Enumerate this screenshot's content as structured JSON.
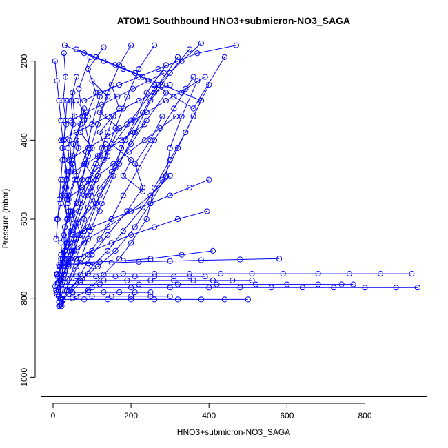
{
  "chart_data": {
    "type": "line",
    "title": "ATOM1 Southbound HNO3+submicron-NO3_SAGA",
    "xlabel": "HNO3+submicron-NO3_SAGA",
    "ylabel": "Pressure (mbar)",
    "xlim": [
      -30,
      960
    ],
    "ylim": [
      1050,
      150
    ],
    "y_reversed": true,
    "x_ticks": [
      0,
      200,
      400,
      600,
      800
    ],
    "y_ticks": [
      200,
      400,
      600,
      800,
      1000
    ],
    "marker": "open-circle",
    "color": "#0000ff",
    "grid": false,
    "series": [
      {
        "x": [
          22,
          35,
          58,
          90,
          120,
          170,
          210,
          250,
          300,
          350
        ],
        "y": [
          820,
          780,
          700,
          620,
          540,
          460,
          380,
          300,
          230,
          170
        ]
      },
      {
        "x": [
          10,
          28,
          45,
          60,
          95,
          140,
          200,
          260,
          330,
          380
        ],
        "y": [
          790,
          740,
          690,
          610,
          520,
          430,
          350,
          270,
          200,
          155
        ]
      },
      {
        "x": [
          15,
          20,
          40,
          70,
          110,
          150,
          185,
          230,
          270,
          320
        ],
        "y": [
          810,
          760,
          710,
          640,
          560,
          480,
          400,
          330,
          260,
          190
        ]
      },
      {
        "x": [
          8,
          30,
          55,
          80,
          100,
          130,
          160,
          190,
          220,
          260
        ],
        "y": [
          780,
          730,
          680,
          600,
          530,
          450,
          370,
          290,
          220,
          160
        ]
      },
      {
        "x": [
          12,
          25,
          35,
          50,
          70,
          90,
          115,
          140,
          170,
          200
        ],
        "y": [
          760,
          710,
          660,
          590,
          510,
          440,
          360,
          280,
          210,
          160
        ]
      },
      {
        "x": [
          20,
          40,
          60,
          50,
          75,
          95,
          80,
          110,
          90,
          130
        ],
        "y": [
          800,
          720,
          650,
          580,
          500,
          420,
          350,
          280,
          220,
          165
        ]
      },
      {
        "x": [
          5,
          18,
          30,
          45,
          38,
          60,
          52,
          75,
          66,
          95
        ],
        "y": [
          770,
          720,
          680,
          630,
          560,
          490,
          410,
          340,
          270,
          190
        ]
      },
      {
        "x": [
          25,
          48,
          72,
          95,
          125,
          155,
          175,
          210,
          240,
          290
        ],
        "y": [
          790,
          750,
          700,
          630,
          560,
          490,
          420,
          350,
          280,
          210
        ]
      },
      {
        "x": [
          18,
          22,
          30,
          28,
          40,
          34,
          48,
          42,
          55,
          50
        ],
        "y": [
          800,
          750,
          700,
          640,
          580,
          520,
          460,
          400,
          340,
          280
        ]
      },
      {
        "x": [
          30,
          60,
          90,
          120,
          150,
          180,
          220,
          260,
          310,
          360
        ],
        "y": [
          760,
          720,
          690,
          650,
          600,
          540,
          470,
          400,
          320,
          240
        ]
      },
      {
        "x": [
          14,
          26,
          20,
          36,
          30,
          44,
          38,
          52,
          46,
          60
        ],
        "y": [
          780,
          720,
          660,
          600,
          540,
          480,
          420,
          360,
          300,
          240
        ]
      },
      {
        "x": [
          40,
          70,
          100,
          140,
          180,
          230,
          280,
          320,
          360,
          400
        ],
        "y": [
          790,
          760,
          720,
          680,
          630,
          570,
          500,
          420,
          340,
          260
        ]
      },
      {
        "x": [
          10,
          40,
          80,
          60,
          110,
          90,
          140,
          120,
          170,
          150
        ],
        "y": [
          740,
          700,
          660,
          610,
          560,
          500,
          440,
          380,
          320,
          260
        ]
      },
      {
        "x": [
          50,
          90,
          130,
          170,
          200,
          240,
          260,
          300,
          340,
          380
        ],
        "y": [
          800,
          780,
          740,
          700,
          660,
          600,
          520,
          450,
          380,
          300
        ]
      },
      {
        "x": [
          20,
          35,
          50,
          65,
          80,
          95,
          110,
          125,
          140,
          155
        ],
        "y": [
          700,
          660,
          620,
          580,
          540,
          500,
          460,
          420,
          380,
          340
        ]
      },
      {
        "x": [
          16,
          32,
          48,
          64,
          90,
          120,
          160,
          200,
          240,
          290
        ],
        "y": [
          720,
          690,
          650,
          610,
          570,
          520,
          470,
          410,
          350,
          280
        ]
      },
      {
        "x": [
          12,
          30,
          45,
          38,
          55,
          70,
          62,
          85,
          100,
          120
        ],
        "y": [
          760,
          730,
          700,
          660,
          610,
          560,
          500,
          430,
          360,
          290
        ]
      },
      {
        "x": [
          35,
          75,
          115,
          160,
          210,
          250,
          290,
          300,
          330,
          370
        ],
        "y": [
          780,
          750,
          720,
          680,
          620,
          560,
          490,
          420,
          340,
          250
        ]
      },
      {
        "x": [
          15,
          25,
          35,
          30,
          45,
          40,
          55,
          50,
          65,
          60
        ],
        "y": [
          740,
          700,
          660,
          620,
          580,
          540,
          500,
          460,
          420,
          380
        ]
      },
      {
        "x": [
          22,
          45,
          70,
          100,
          140,
          190,
          230,
          210,
          250,
          280
        ],
        "y": [
          810,
          780,
          740,
          690,
          640,
          580,
          520,
          460,
          400,
          340
        ]
      },
      {
        "x": [
          300,
          250,
          200,
          140,
          90,
          50,
          20
        ],
        "y": [
          490,
          540,
          580,
          620,
          650,
          680,
          710
        ]
      },
      {
        "x": [
          395,
          320,
          260,
          200,
          150,
          100,
          60,
          30
        ],
        "y": [
          580,
          600,
          620,
          640,
          660,
          680,
          700,
          710
        ]
      },
      {
        "x": [
          410,
          330,
          250,
          180,
          120,
          70,
          30
        ],
        "y": [
          680,
          690,
          700,
          705,
          708,
          710,
          712
        ]
      },
      {
        "x": [
          580,
          480,
          380,
          300,
          220,
          150,
          90,
          40,
          15
        ],
        "y": [
          700,
          702,
          704,
          706,
          708,
          710,
          712,
          714,
          716
        ]
      },
      {
        "x": [
          10,
          90,
          180,
          260,
          350,
          430,
          510,
          590,
          680,
          760,
          840,
          920
        ],
        "y": [
          738,
          738,
          738,
          738,
          738,
          738,
          738,
          738,
          738,
          738,
          738,
          738
        ]
      },
      {
        "x": [
          15,
          100,
          200,
          300,
          400,
          480,
          560,
          640,
          720,
          800,
          880,
          935
        ],
        "y": [
          773,
          773,
          773,
          773,
          773,
          773,
          773,
          773,
          773,
          773,
          773,
          773
        ]
      },
      {
        "x": [
          20,
          120,
          220,
          320,
          420,
          520,
          600,
          680,
          740,
          770
        ],
        "y": [
          765,
          765,
          765,
          765,
          765,
          765,
          765,
          765,
          765,
          765
        ]
      },
      {
        "x": [
          25,
          80,
          140,
          200,
          260,
          320,
          380,
          440,
          500
        ],
        "y": [
          803,
          803,
          803,
          803,
          803,
          803,
          803,
          803,
          803
        ]
      },
      {
        "x": [
          12,
          60,
          110,
          160,
          210,
          260,
          310,
          350,
          390
        ],
        "y": [
          745,
          745,
          745,
          745,
          745,
          745,
          745,
          745,
          745
        ]
      },
      {
        "x": [
          18,
          70,
          130,
          190,
          250,
          310,
          360,
          410,
          460,
          510
        ],
        "y": [
          755,
          755,
          755,
          755,
          755,
          755,
          755,
          755,
          755,
          755
        ]
      },
      {
        "x": [
          10,
          50,
          90,
          130,
          170,
          210,
          250
        ],
        "y": [
          785,
          785,
          785,
          785,
          785,
          785,
          785
        ]
      },
      {
        "x": [
          14,
          60,
          100,
          150,
          200,
          250,
          300
        ],
        "y": [
          795,
          795,
          795,
          795,
          795,
          795,
          795
        ]
      },
      {
        "x": [
          15,
          18,
          20,
          22,
          25
        ],
        "y": [
          820,
          818,
          815,
          810,
          805
        ]
      },
      {
        "x": [
          30,
          80,
          130,
          180,
          230,
          280,
          330,
          380
        ],
        "y": [
          160,
          180,
          200,
          220,
          240,
          260,
          280,
          300
        ]
      },
      {
        "x": [
          60,
          110,
          160,
          210,
          260,
          310,
          360,
          440
        ],
        "y": [
          170,
          190,
          210,
          230,
          260,
          290,
          320,
          190
        ]
      },
      {
        "x": [
          80,
          120,
          170,
          220,
          270,
          320,
          370,
          470
        ],
        "y": [
          300,
          280,
          260,
          240,
          220,
          200,
          180,
          160
        ]
      },
      {
        "x": [
          20,
          60,
          100,
          140,
          180,
          220,
          260,
          300
        ],
        "y": [
          400,
          380,
          360,
          340,
          320,
          300,
          280,
          260
        ]
      },
      {
        "x": [
          40,
          90,
          140,
          190,
          240,
          290,
          340,
          390
        ],
        "y": [
          450,
          420,
          390,
          360,
          330,
          300,
          270,
          240
        ]
      },
      {
        "x": [
          25,
          55,
          85,
          115,
          145,
          175,
          205,
          235
        ],
        "y": [
          500,
          480,
          460,
          440,
          420,
          400,
          380,
          360
        ]
      },
      {
        "x": [
          35,
          75,
          115,
          155,
          195,
          235,
          275,
          315
        ],
        "y": [
          550,
          520,
          490,
          460,
          430,
          400,
          370,
          340
        ]
      },
      {
        "x": [
          10,
          20,
          30,
          40,
          50,
          60,
          70,
          80
        ],
        "y": [
          600,
          560,
          520,
          480,
          440,
          400,
          360,
          320
        ]
      },
      {
        "x": [
          8,
          12,
          16,
          20,
          24,
          28,
          32,
          36
        ],
        "y": [
          650,
          600,
          550,
          500,
          450,
          400,
          350,
          300
        ]
      },
      {
        "x": [
          30,
          45,
          60,
          75,
          90,
          105,
          120,
          135
        ],
        "y": [
          620,
          590,
          560,
          530,
          500,
          470,
          440,
          410
        ]
      },
      {
        "x": [
          50,
          100,
          150,
          200,
          250,
          300,
          350,
          400
        ],
        "y": [
          640,
          620,
          600,
          580,
          560,
          540,
          520,
          500
        ]
      },
      {
        "x": [
          20,
          30,
          40,
          50,
          60,
          70,
          80,
          90
        ],
        "y": [
          690,
          680,
          670,
          660,
          650,
          640,
          630,
          620
        ]
      },
      {
        "x": [
          45,
          85,
          125,
          165,
          205,
          245,
          285
        ],
        "y": [
          350,
          330,
          310,
          290,
          270,
          250,
          230
        ]
      },
      {
        "x": [
          5,
          10,
          15,
          20,
          25,
          30,
          35,
          40
        ],
        "y": [
          200,
          250,
          300,
          350,
          400,
          450,
          500,
          550
        ]
      },
      {
        "x": [
          28,
          32,
          26,
          34,
          24,
          36,
          22,
          38
        ],
        "y": [
          180,
          240,
          300,
          360,
          420,
          480,
          540,
          600
        ]
      },
      {
        "x": [
          100,
          140,
          120,
          170,
          150,
          200,
          180,
          230
        ],
        "y": [
          250,
          290,
          330,
          370,
          410,
          450,
          490,
          530
        ]
      },
      {
        "x": [
          60,
          90,
          70,
          100,
          80,
          110,
          90,
          120
        ],
        "y": [
          300,
          340,
          380,
          420,
          460,
          500,
          540,
          580
        ]
      }
    ]
  }
}
